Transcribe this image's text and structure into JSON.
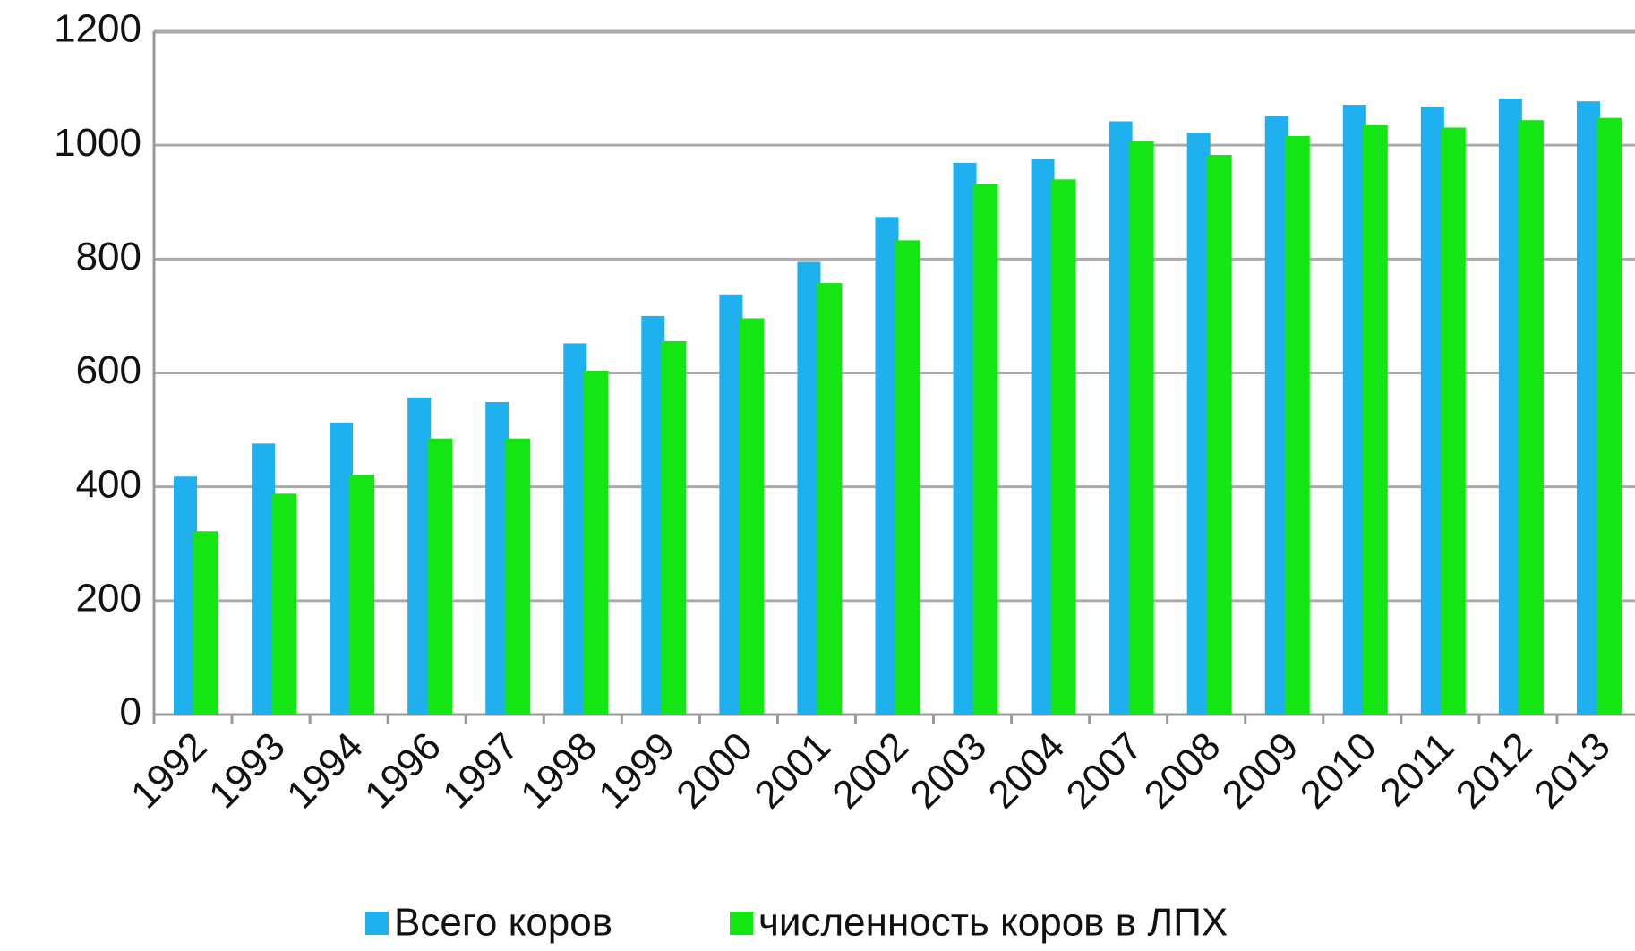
{
  "chart_data": {
    "type": "bar",
    "categories": [
      "1992",
      "1993",
      "1994",
      "1996",
      "1997",
      "1998",
      "1999",
      "2000",
      "2001",
      "2002",
      "2003",
      "2004",
      "2007",
      "2008",
      "2009",
      "2010",
      "2011",
      "2012",
      "2013"
    ],
    "series": [
      {
        "name": "Всего коров",
        "color": "#1fb0ef",
        "values": [
          418,
          476,
          513,
          557,
          549,
          652,
          700,
          738,
          795,
          874,
          969,
          976,
          1042,
          1022,
          1051,
          1071,
          1068,
          1082,
          1077
        ]
      },
      {
        "name": "численность коров в ЛПХ",
        "color": "#14e614",
        "values": [
          322,
          388,
          421,
          485,
          485,
          604,
          656,
          696,
          758,
          833,
          932,
          940,
          1007,
          983,
          1016,
          1035,
          1031,
          1044,
          1048
        ]
      }
    ],
    "ylim": [
      0,
      1200
    ],
    "yticks": [
      0,
      200,
      400,
      600,
      800,
      1000,
      1200
    ],
    "grid": true,
    "legend": "bottom"
  }
}
